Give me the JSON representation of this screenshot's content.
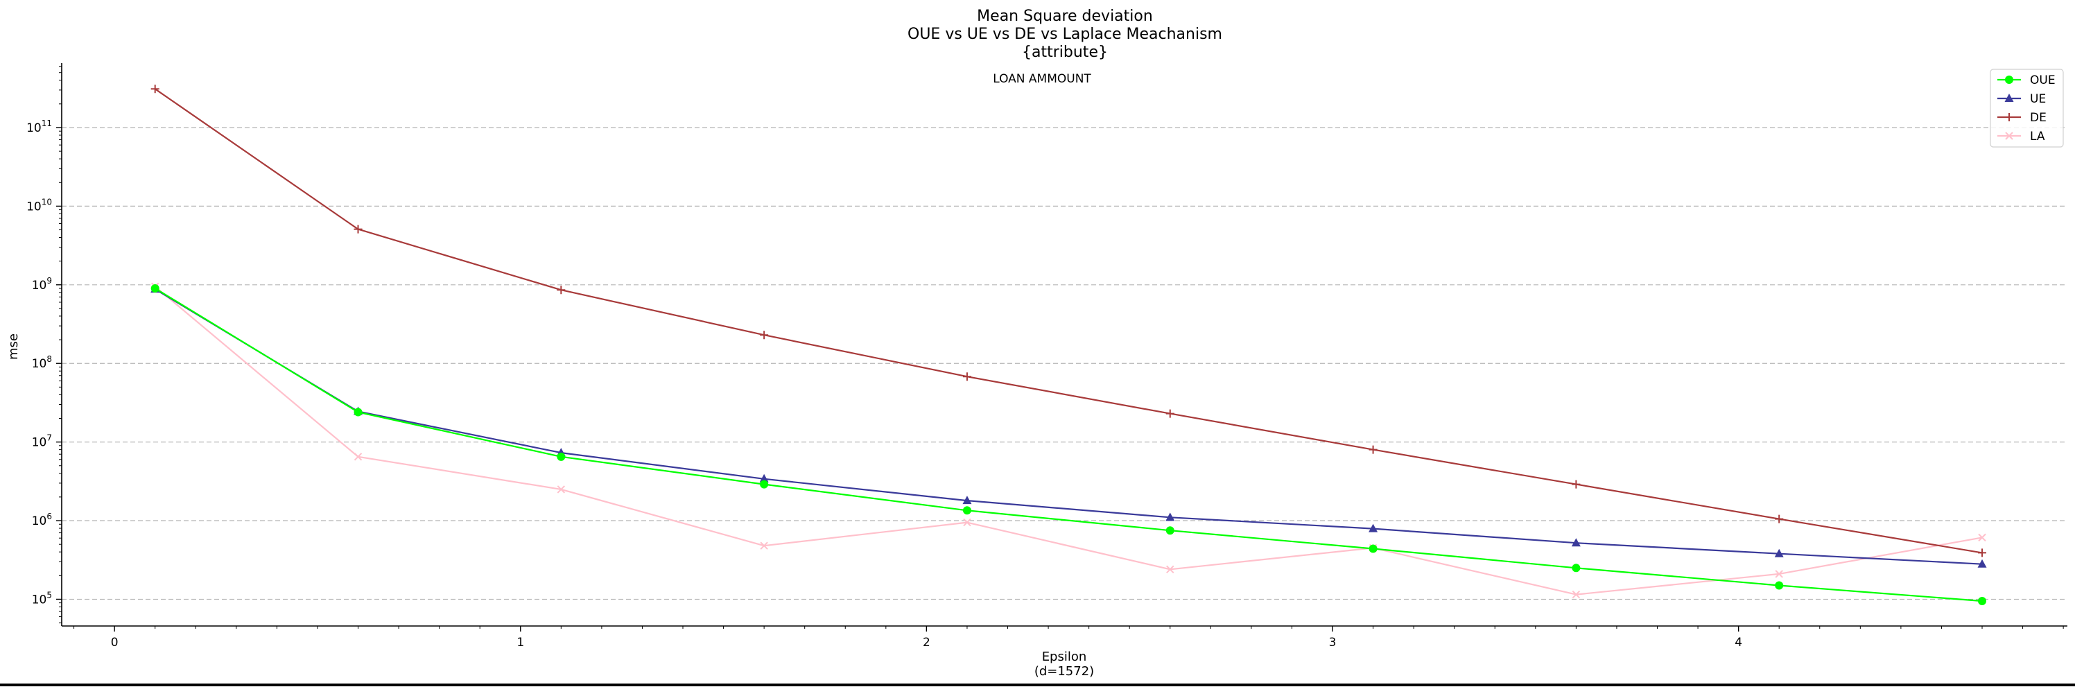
{
  "chart_data": {
    "type": "line",
    "title_lines": [
      "Mean Square deviation",
      "OUE vs UE vs DE vs Laplace Meachanism",
      "{attribute}"
    ],
    "annotation": "LOAN AMMOUNT",
    "xlabel_lines": [
      "Epsilon",
      "(d=1572)"
    ],
    "ylabel": "mse",
    "yscale": "log",
    "grid": "y-major dashed",
    "legend_position": "top-right",
    "xlim": [
      -0.13,
      4.81
    ],
    "ylim_log10": [
      4.66,
      11.82
    ],
    "xticks": [
      0,
      1,
      2,
      3,
      4
    ],
    "xtick_labels": [
      "0",
      "1",
      "2",
      "3",
      "4"
    ],
    "yticks_exp": [
      5,
      6,
      7,
      8,
      9,
      10,
      11
    ],
    "ytick_base": "10",
    "x": [
      0.1,
      0.6,
      1.1,
      1.6,
      2.1,
      2.6,
      3.1,
      3.6,
      4.1,
      4.6
    ],
    "series": [
      {
        "name": "OUE",
        "color": "#00ff00",
        "marker": "circle",
        "values": [
          900000000,
          24000000,
          6500000,
          2900000,
          1350000,
          750000,
          440000,
          250000,
          150000,
          95000
        ]
      },
      {
        "name": "UE",
        "color": "#3a3a9a",
        "marker": "triangle",
        "values": [
          880000000,
          24500000,
          7300000,
          3400000,
          1800000,
          1100000,
          790000,
          520000,
          380000,
          280000
        ]
      },
      {
        "name": "DE",
        "color": "#a83a3a",
        "marker": "plus",
        "values": [
          310000000000,
          5100000000,
          860000000,
          230000000,
          68000000,
          23000000,
          8000000,
          2900000,
          1050000,
          390000
        ]
      },
      {
        "name": "LA",
        "color": "#ffc0cb",
        "marker": "x",
        "values": [
          950000000,
          6500000,
          2500000,
          480000,
          950000,
          240000,
          450000,
          115000,
          210000,
          610000
        ]
      }
    ]
  }
}
